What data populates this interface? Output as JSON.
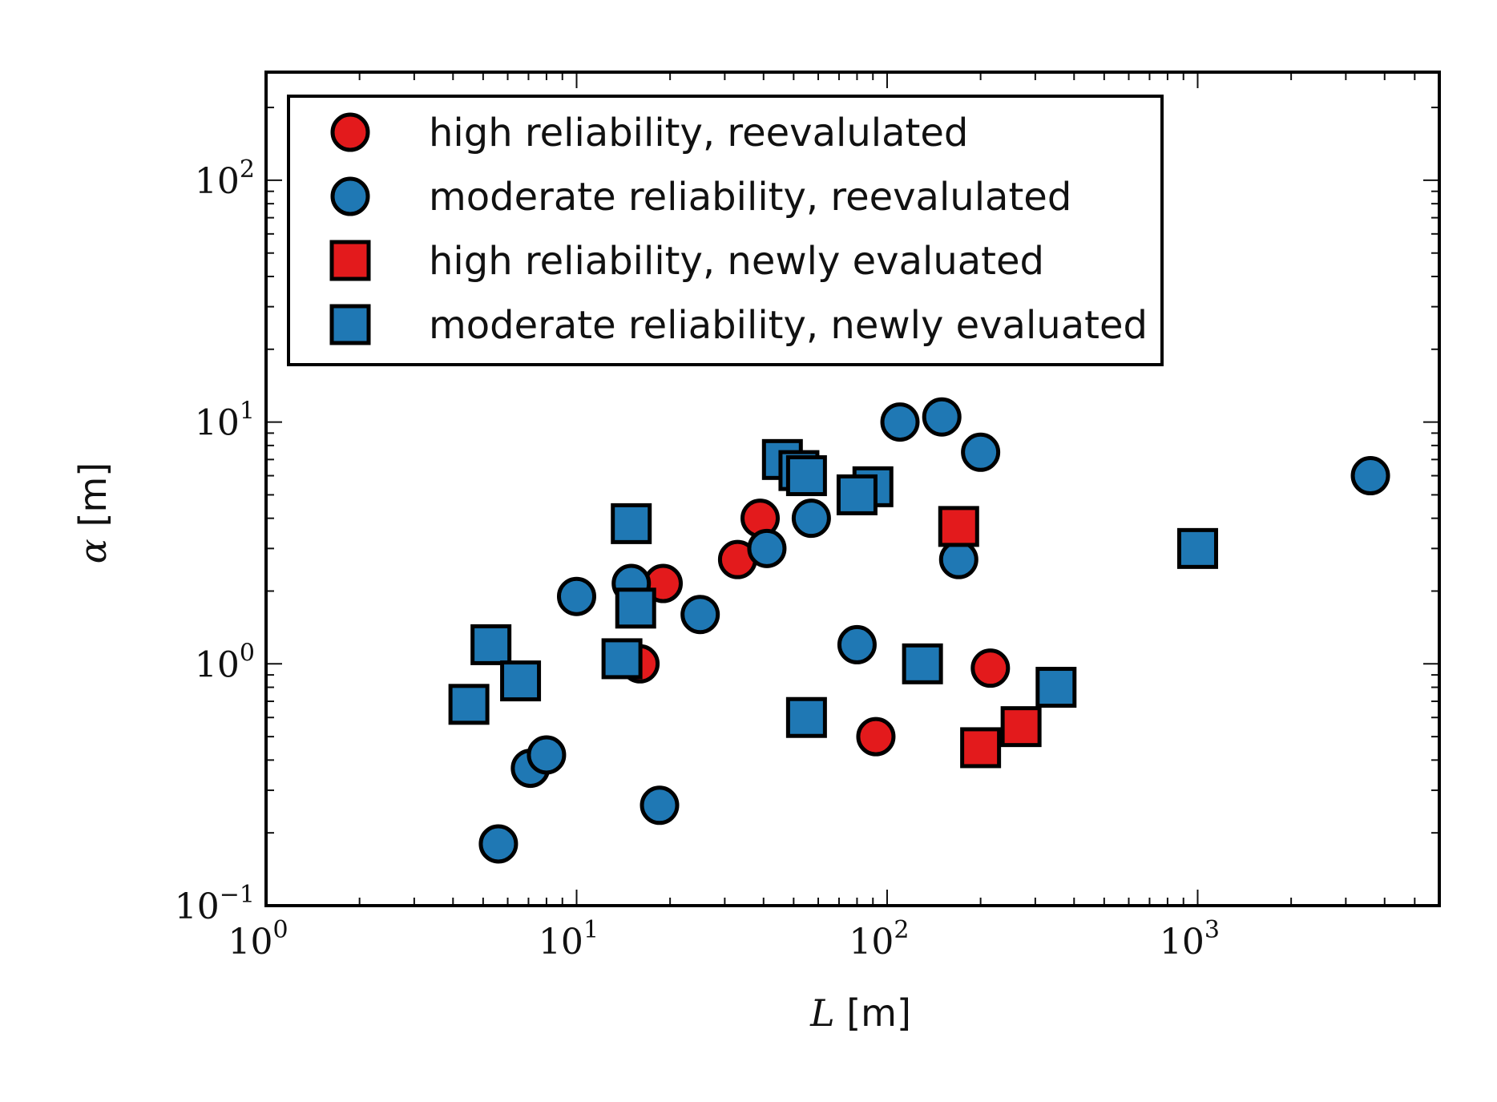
{
  "chart_data": {
    "type": "scatter",
    "title": "",
    "xlabel": {
      "symbol": "L",
      "unit": "[m]"
    },
    "ylabel": {
      "symbol": "α",
      "unit": "[m]"
    },
    "xscale": "log",
    "yscale": "log",
    "xlim": [
      1,
      6000
    ],
    "ylim": [
      0.1,
      280
    ],
    "x_ticks": [
      {
        "value": 1,
        "base": "10",
        "exp": "0"
      },
      {
        "value": 10,
        "base": "10",
        "exp": "1"
      },
      {
        "value": 100,
        "base": "10",
        "exp": "2"
      },
      {
        "value": 1000,
        "base": "10",
        "exp": "3"
      }
    ],
    "y_ticks": [
      {
        "value": 0.1,
        "base": "10",
        "exp": "−1"
      },
      {
        "value": 1,
        "base": "10",
        "exp": "0"
      },
      {
        "value": 10,
        "base": "10",
        "exp": "1"
      },
      {
        "value": 100,
        "base": "10",
        "exp": "2"
      }
    ],
    "legend_position": "top-left",
    "series": [
      {
        "name": "high reliability, reevalulated",
        "marker": "circle",
        "color": "#e31a1c",
        "points": [
          [
            16,
            1.0
          ],
          [
            19,
            2.15
          ],
          [
            33,
            2.7
          ],
          [
            39,
            4.0
          ],
          [
            92,
            0.5
          ],
          [
            215,
            0.96
          ]
        ]
      },
      {
        "name": "moderate reliability, reevalulated",
        "marker": "circle",
        "color": "#1f78b4",
        "points": [
          [
            5.6,
            0.18
          ],
          [
            7.1,
            0.37
          ],
          [
            8.0,
            0.42
          ],
          [
            10,
            1.9
          ],
          [
            15,
            2.15
          ],
          [
            18.5,
            0.26
          ],
          [
            25,
            1.6
          ],
          [
            41,
            3.0
          ],
          [
            57,
            4.0
          ],
          [
            80,
            1.2
          ],
          [
            110,
            10.0
          ],
          [
            150,
            10.5
          ],
          [
            170,
            2.7
          ],
          [
            200,
            7.5
          ],
          [
            3600,
            6.0
          ]
        ]
      },
      {
        "name": "high reliability, newly evaluated",
        "marker": "square",
        "color": "#e31a1c",
        "points": [
          [
            170,
            3.7
          ],
          [
            200,
            0.45
          ],
          [
            270,
            0.55
          ]
        ]
      },
      {
        "name": "moderate reliability, newly evaluated",
        "marker": "square",
        "color": "#1f78b4",
        "points": [
          [
            4.5,
            0.68
          ],
          [
            5.3,
            1.2
          ],
          [
            6.6,
            0.85
          ],
          [
            14,
            1.05
          ],
          [
            15,
            3.8
          ],
          [
            15.5,
            1.7
          ],
          [
            46,
            7.0
          ],
          [
            52,
            6.3
          ],
          [
            55,
            6.0
          ],
          [
            55,
            0.6
          ],
          [
            90,
            5.4
          ],
          [
            80,
            5.0
          ],
          [
            130,
            1.0
          ],
          [
            350,
            0.8
          ],
          [
            1000,
            3.0
          ]
        ]
      }
    ]
  }
}
